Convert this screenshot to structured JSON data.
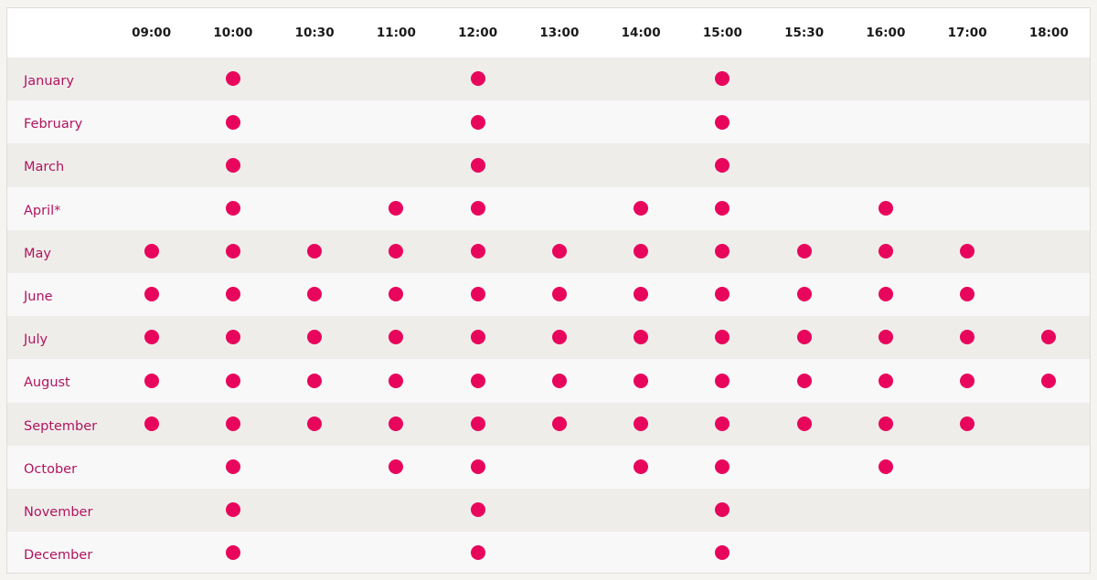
{
  "colors": {
    "dot": "#e8065c",
    "month_text": "#b0155f",
    "row_alt": "#efedea",
    "row_plain": "#f8f8f8"
  },
  "times": [
    "09:00",
    "10:00",
    "10:30",
    "11:00",
    "12:00",
    "13:00",
    "14:00",
    "15:00",
    "15:30",
    "16:00",
    "17:00",
    "18:00"
  ],
  "rows": [
    {
      "month": "January",
      "slots": [
        0,
        1,
        0,
        0,
        1,
        0,
        0,
        1,
        0,
        0,
        0,
        0
      ]
    },
    {
      "month": "February",
      "slots": [
        0,
        1,
        0,
        0,
        1,
        0,
        0,
        1,
        0,
        0,
        0,
        0
      ]
    },
    {
      "month": "March",
      "slots": [
        0,
        1,
        0,
        0,
        1,
        0,
        0,
        1,
        0,
        0,
        0,
        0
      ]
    },
    {
      "month": "April*",
      "slots": [
        0,
        1,
        0,
        1,
        1,
        0,
        1,
        1,
        0,
        1,
        0,
        0
      ]
    },
    {
      "month": "May",
      "slots": [
        1,
        1,
        1,
        1,
        1,
        1,
        1,
        1,
        1,
        1,
        1,
        0
      ]
    },
    {
      "month": "June",
      "slots": [
        1,
        1,
        1,
        1,
        1,
        1,
        1,
        1,
        1,
        1,
        1,
        0
      ]
    },
    {
      "month": "July",
      "slots": [
        1,
        1,
        1,
        1,
        1,
        1,
        1,
        1,
        1,
        1,
        1,
        1
      ]
    },
    {
      "month": "August",
      "slots": [
        1,
        1,
        1,
        1,
        1,
        1,
        1,
        1,
        1,
        1,
        1,
        1
      ]
    },
    {
      "month": "September",
      "slots": [
        1,
        1,
        1,
        1,
        1,
        1,
        1,
        1,
        1,
        1,
        1,
        0
      ]
    },
    {
      "month": "October",
      "slots": [
        0,
        1,
        0,
        1,
        1,
        0,
        1,
        1,
        0,
        1,
        0,
        0
      ]
    },
    {
      "month": "November",
      "slots": [
        0,
        1,
        0,
        0,
        1,
        0,
        0,
        1,
        0,
        0,
        0,
        0
      ]
    },
    {
      "month": "December",
      "slots": [
        0,
        1,
        0,
        0,
        1,
        0,
        0,
        1,
        0,
        0,
        0,
        0
      ]
    }
  ]
}
